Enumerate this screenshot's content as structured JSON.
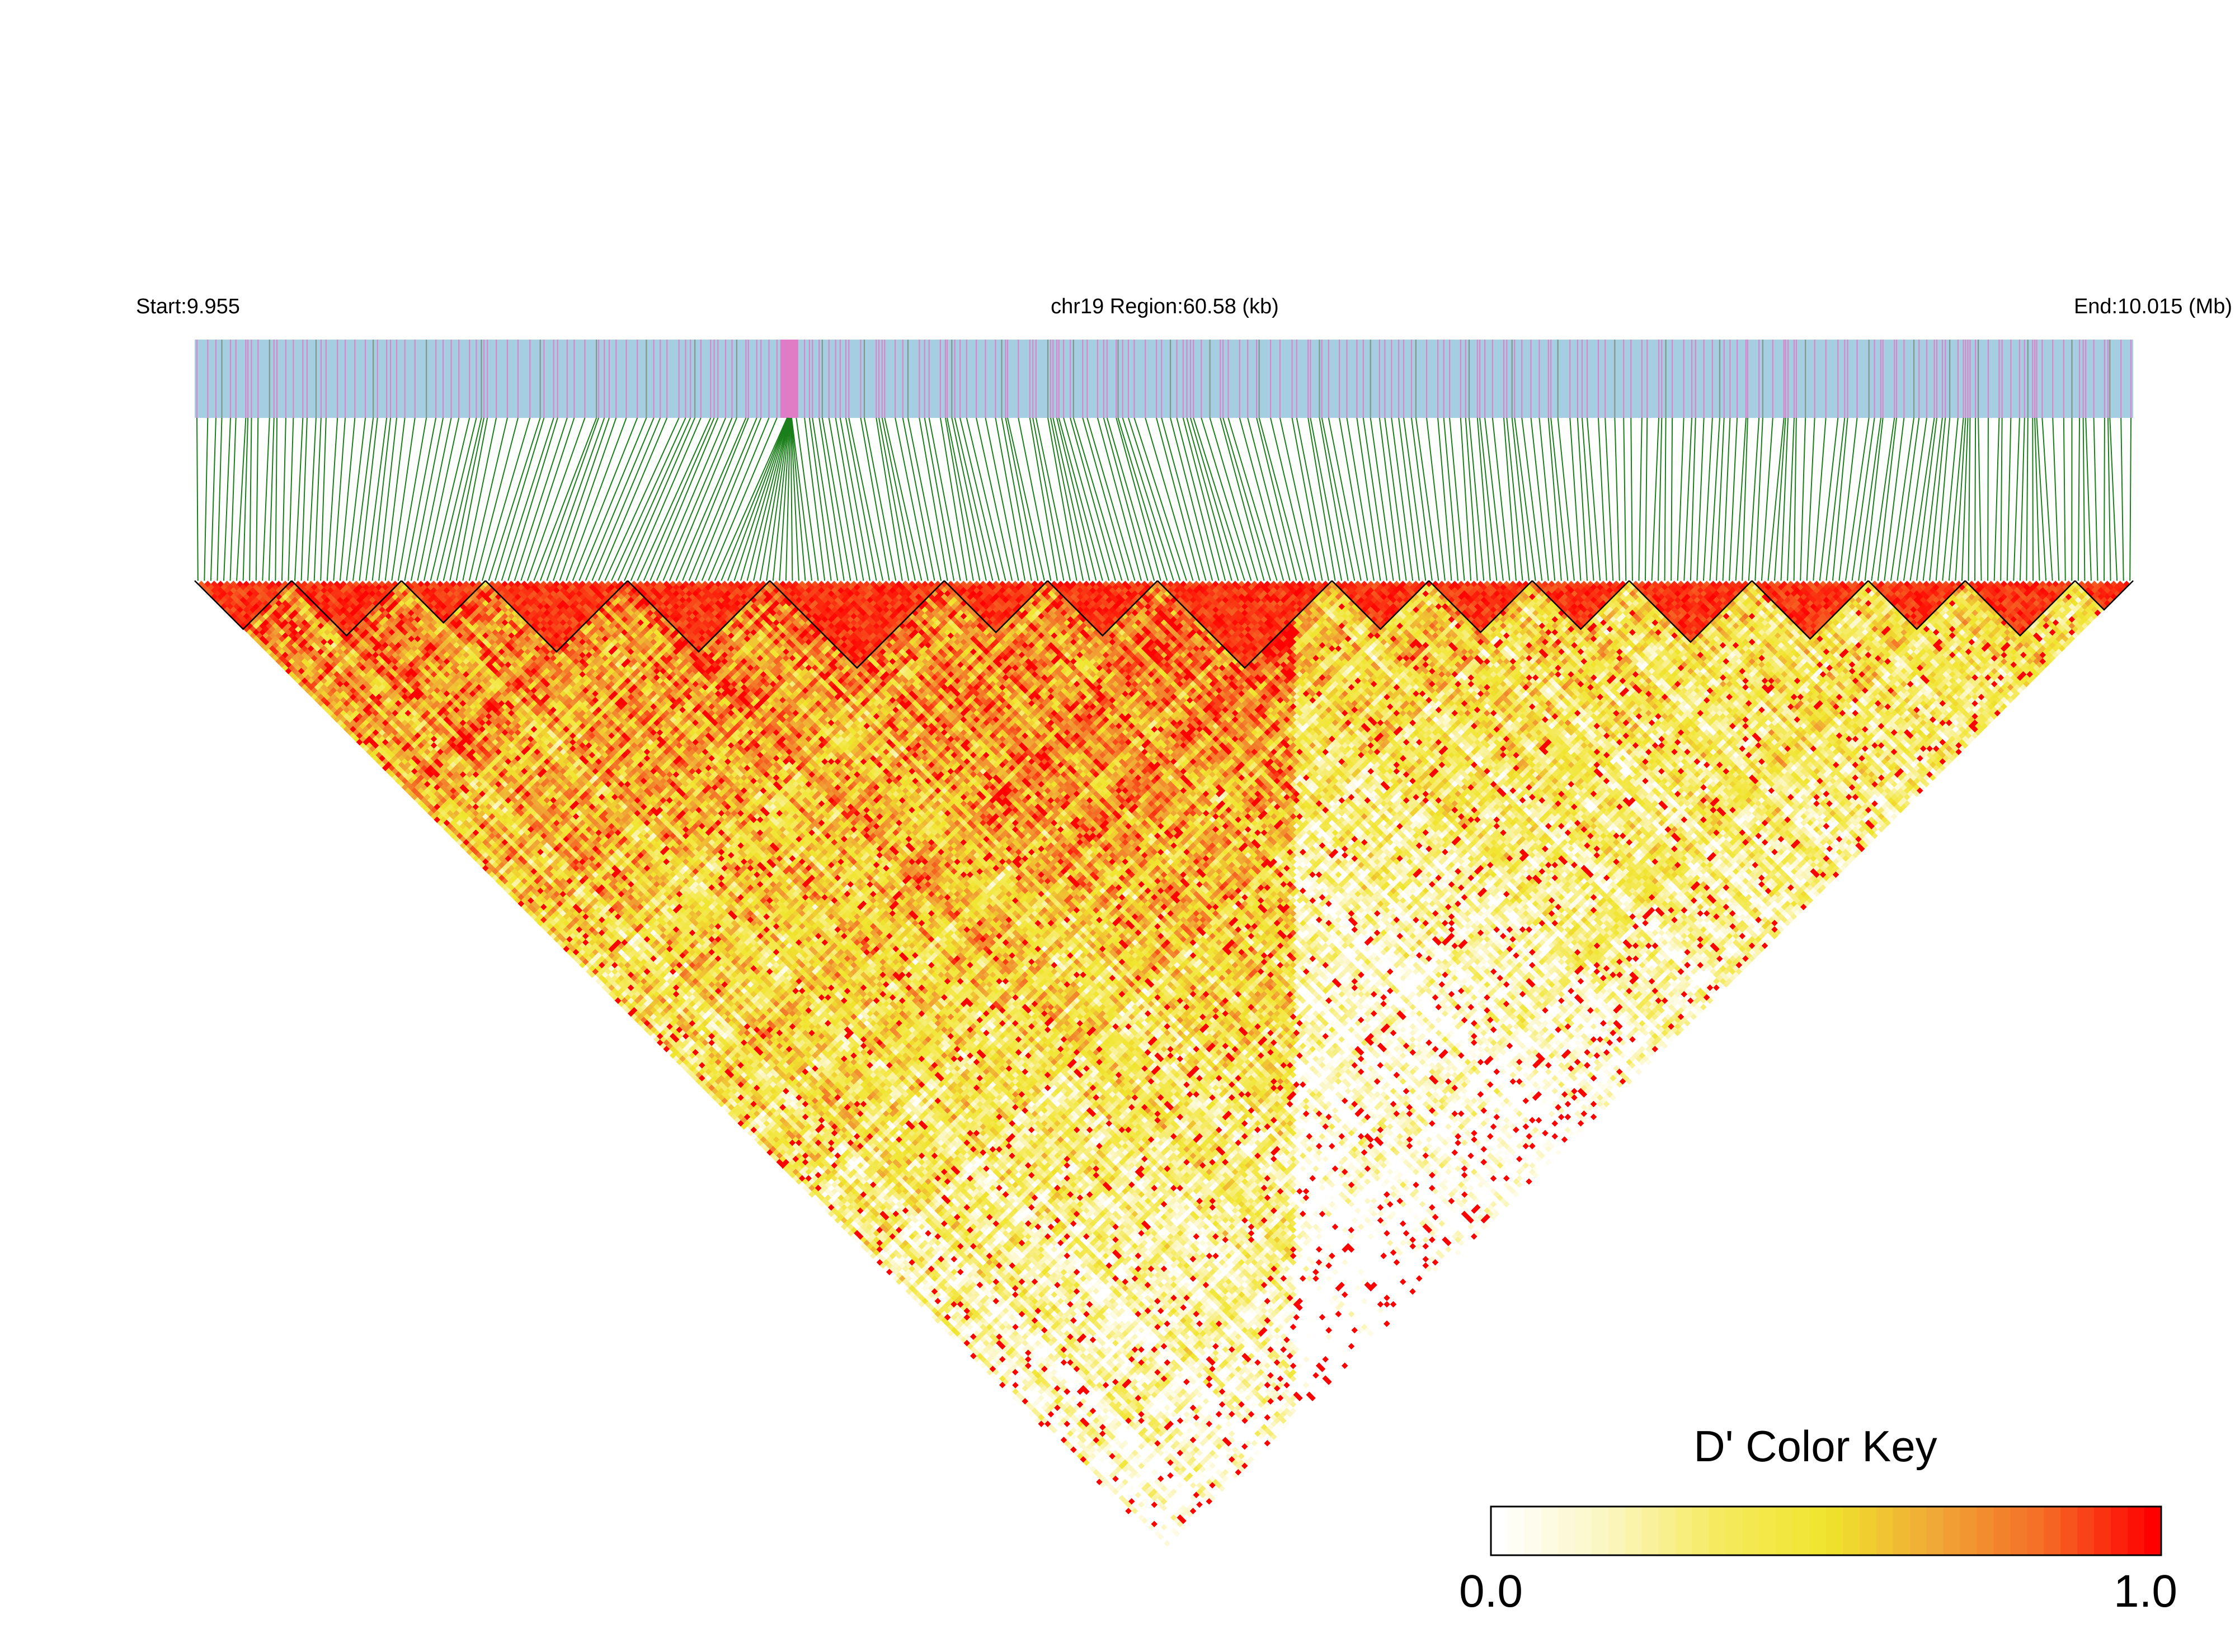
{
  "chart_data": {
    "type": "heatmap",
    "subtype": "ld-triangle",
    "header": {
      "start_label": "Start:9.955",
      "region_label": "chr19 Region:60.58 (kb)",
      "end_label": "End:10.015 (Mb)"
    },
    "region": {
      "chrom": "chr19",
      "start_mb": 9.955,
      "end_mb": 10.015,
      "length_kb": 60.58
    },
    "n_snps": 300,
    "colors": {
      "track_bg": "#a6cee3",
      "track_marker": "#e07bc5",
      "track_marker_alt": "#7a8f7a",
      "connector": "#1a7f1a",
      "block_outline": "#000000",
      "scale": [
        "#ffffff",
        "#fbf6c0",
        "#f5ea60",
        "#f0e52d",
        "#f0a836",
        "#f46c26",
        "#ff0000"
      ]
    },
    "highlight_snp_index": 88,
    "ld_blocks": [
      [
        0,
        14
      ],
      [
        15,
        31
      ],
      [
        32,
        44
      ],
      [
        45,
        66
      ],
      [
        67,
        88
      ],
      [
        89,
        115
      ],
      [
        116,
        131
      ],
      [
        132,
        148
      ],
      [
        149,
        175
      ],
      [
        176,
        190
      ],
      [
        191,
        206
      ],
      [
        207,
        221
      ],
      [
        222,
        240
      ],
      [
        241,
        258
      ],
      [
        259,
        273
      ],
      [
        274,
        290
      ],
      [
        291,
        299
      ]
    ],
    "legend": {
      "title": "D' Color Key",
      "min_label": "0.0",
      "max_label": "1.0",
      "range": [
        0,
        1
      ]
    }
  }
}
